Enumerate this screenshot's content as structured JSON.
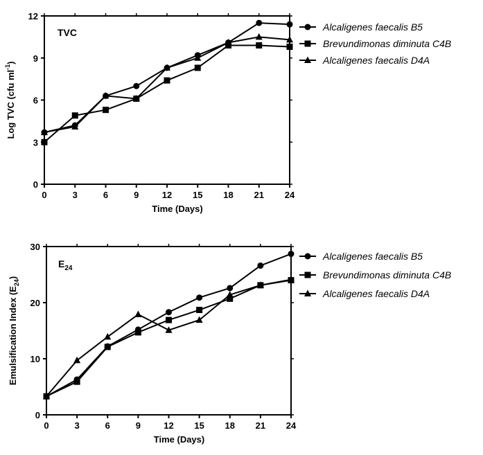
{
  "chart_data": [
    {
      "type": "line",
      "panel_label": "TVC",
      "xlabel": "Time (Days)",
      "ylabel": "Log TVC (cfu ml-1)",
      "ylabel_main": "Log TVC (cfu ml",
      "ylabel_sup": "-1",
      "ylabel_end": ")",
      "x": [
        0,
        3,
        6,
        9,
        12,
        15,
        18,
        21,
        24
      ],
      "xlim": [
        0,
        24
      ],
      "ylim": [
        0,
        12
      ],
      "xticks": [
        0,
        3,
        6,
        9,
        12,
        15,
        18,
        21,
        24
      ],
      "yticks": [
        0,
        3,
        6,
        9,
        12
      ],
      "grid": false,
      "legend_position": "right",
      "series": [
        {
          "name": "Alcaligenes faecalis B5",
          "marker": "circle",
          "values": [
            3.7,
            4.2,
            6.3,
            7.0,
            8.3,
            9.2,
            10.1,
            11.5,
            11.4
          ]
        },
        {
          "name": "Brevundimonas diminuta C4B",
          "marker": "square",
          "values": [
            3.0,
            4.9,
            5.3,
            6.1,
            7.4,
            8.3,
            9.9,
            9.9,
            9.8
          ]
        },
        {
          "name": "Alcaligenes faecalis D4A",
          "marker": "triangle",
          "values": [
            3.7,
            4.1,
            6.3,
            6.1,
            8.3,
            9.0,
            10.1,
            10.5,
            10.3
          ]
        }
      ]
    },
    {
      "type": "line",
      "panel_label": "E24",
      "panel_label_main": "E",
      "panel_label_sub": "24",
      "xlabel": "Time (Days)",
      "ylabel": "Emulsification Index (E24)",
      "ylabel_main": "Emulsification Index (E",
      "ylabel_sub": "24",
      "ylabel_end": ")",
      "x": [
        0,
        3,
        6,
        9,
        12,
        15,
        18,
        21,
        24
      ],
      "xlim": [
        0,
        24
      ],
      "ylim": [
        0,
        30
      ],
      "xticks": [
        0,
        3,
        6,
        9,
        12,
        15,
        18,
        21,
        24
      ],
      "yticks": [
        0,
        10,
        20,
        30
      ],
      "grid": false,
      "legend_position": "right",
      "series": [
        {
          "name": "Alcaligenes faecalis B5",
          "marker": "circle",
          "values": [
            3.3,
            6.3,
            12.2,
            15.2,
            18.3,
            20.9,
            22.6,
            26.6,
            28.7
          ]
        },
        {
          "name": "Brevundimonas diminuta C4B",
          "marker": "square",
          "values": [
            3.3,
            5.9,
            12.1,
            14.7,
            16.9,
            18.7,
            20.7,
            23.1,
            24.0
          ]
        },
        {
          "name": "Alcaligenes faecalis D4A",
          "marker": "triangle",
          "values": [
            3.3,
            9.7,
            13.9,
            17.9,
            15.1,
            16.9,
            21.4,
            23.1,
            24.1
          ]
        }
      ]
    }
  ]
}
